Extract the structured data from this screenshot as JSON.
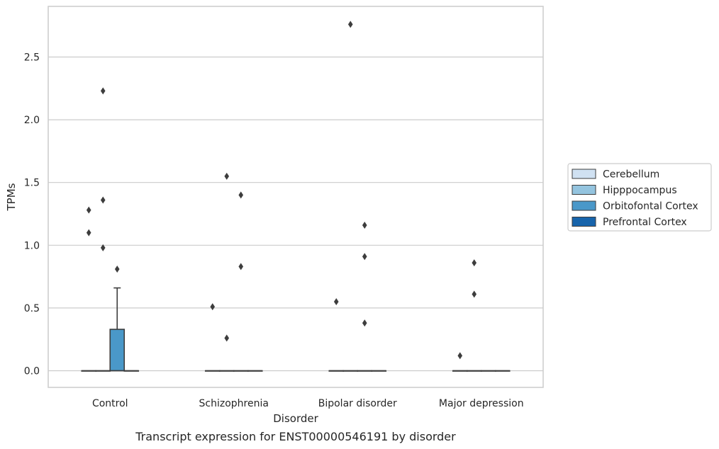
{
  "chart_data": {
    "type": "box",
    "caption": "Transcript expression for ENST00000546191 by disorder",
    "xlabel": "Disorder",
    "ylabel": "TPMs",
    "ylim": [
      -0.13,
      2.92
    ],
    "yticks": [
      0.0,
      0.5,
      1.0,
      1.5,
      2.0,
      2.5
    ],
    "ytick_labels": [
      "0.0",
      "0.5",
      "1.0",
      "1.5",
      "2.0",
      "2.5"
    ],
    "grid": "horizontal",
    "legend_position": "right",
    "categories": [
      "Control",
      "Schizophrenia",
      "Bipolar disorder",
      "Major depression"
    ],
    "series": [
      {
        "name": "Cerebellum",
        "color": "#d0e1f2",
        "boxes": [
          {
            "q1": 0,
            "median": 0,
            "q3": 0,
            "whisker_low": 0,
            "whisker_high": 0,
            "outliers": [
              1.28,
              1.1
            ]
          },
          {
            "q1": 0,
            "median": 0,
            "q3": 0,
            "whisker_low": 0,
            "whisker_high": 0,
            "outliers": [
              0.51
            ]
          },
          {
            "q1": 0,
            "median": 0,
            "q3": 0,
            "whisker_low": 0,
            "whisker_high": 0,
            "outliers": [
              0.55
            ]
          },
          {
            "q1": 0,
            "median": 0,
            "q3": 0,
            "whisker_low": 0,
            "whisker_high": 0,
            "outliers": [
              0.12
            ]
          }
        ]
      },
      {
        "name": "Hipppocampus",
        "color": "#94c4df",
        "boxes": [
          {
            "q1": 0,
            "median": 0,
            "q3": 0,
            "whisker_low": 0,
            "whisker_high": 0,
            "outliers": [
              2.23,
              1.36,
              0.98
            ]
          },
          {
            "q1": 0,
            "median": 0,
            "q3": 0,
            "whisker_low": 0,
            "whisker_high": 0,
            "outliers": [
              1.55,
              0.26
            ]
          },
          {
            "q1": 0,
            "median": 0,
            "q3": 0,
            "whisker_low": 0,
            "whisker_high": 0,
            "outliers": [
              2.76
            ]
          },
          {
            "q1": 0,
            "median": 0,
            "q3": 0,
            "whisker_low": 0,
            "whisker_high": 0,
            "outliers": [
              0.61,
              0.86
            ]
          }
        ]
      },
      {
        "name": "Orbitofontal Cortex",
        "color": "#4a98c9",
        "boxes": [
          {
            "q1": 0,
            "median": 0,
            "q3": 0.33,
            "whisker_low": 0,
            "whisker_high": 0.66,
            "outliers": [
              0.81
            ]
          },
          {
            "q1": 0,
            "median": 0,
            "q3": 0,
            "whisker_low": 0,
            "whisker_high": 0,
            "outliers": [
              1.4,
              0.83
            ]
          },
          {
            "q1": 0,
            "median": 0,
            "q3": 0,
            "whisker_low": 0,
            "whisker_high": 0,
            "outliers": [
              1.16,
              0.91,
              0.38
            ]
          },
          {
            "q1": 0,
            "median": 0,
            "q3": 0,
            "whisker_low": 0,
            "whisker_high": 0,
            "outliers": []
          }
        ]
      },
      {
        "name": "Prefrontal Cortex",
        "color": "#1764ab",
        "boxes": [
          {
            "q1": 0,
            "median": 0,
            "q3": 0,
            "whisker_low": 0,
            "whisker_high": 0,
            "outliers": []
          },
          {
            "q1": 0,
            "median": 0,
            "q3": 0,
            "whisker_low": 0,
            "whisker_high": 0,
            "outliers": []
          },
          {
            "q1": 0,
            "median": 0,
            "q3": 0,
            "whisker_low": 0,
            "whisker_high": 0,
            "outliers": []
          },
          {
            "q1": 0,
            "median": 0,
            "q3": 0,
            "whisker_low": 0,
            "whisker_high": 0,
            "outliers": []
          }
        ]
      }
    ]
  }
}
